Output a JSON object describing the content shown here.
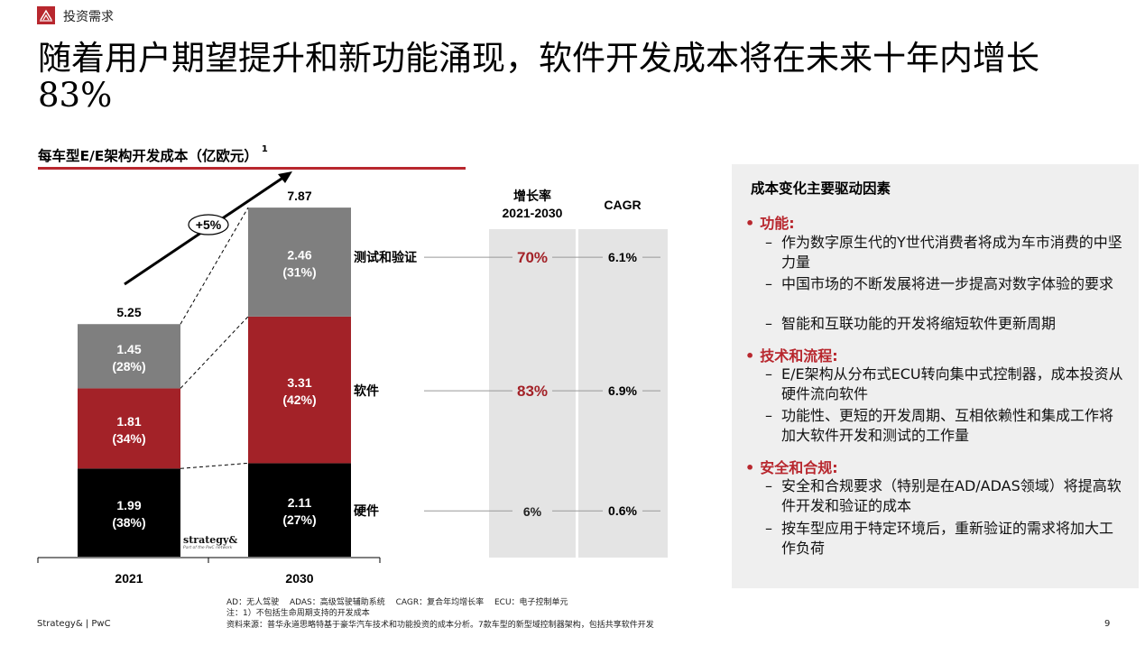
{
  "header": {
    "section_label": "投资需求",
    "logo_icon": "pwc-mark-icon",
    "brand_color": "#b8272e"
  },
  "headline": "随着用户期望提升和新功能涌现，软件开发成本将在未来十年内增长83%",
  "chart_data": {
    "type": "bar",
    "stacked": true,
    "title": "每车型E/E架构开发成本（亿欧元）",
    "title_footnote": "1",
    "categories": [
      "2021",
      "2030"
    ],
    "totals": [
      "5.25",
      "7.87"
    ],
    "growth_label": "+5%",
    "series": [
      {
        "name": "硬件",
        "color": "#000000",
        "values": [
          1.99,
          2.11
        ],
        "shares": [
          "(38%)",
          "(27%)"
        ],
        "growth": "6%",
        "cagr": "0.6%",
        "growth_color": "#222222"
      },
      {
        "name": "软件",
        "color": "#a32228",
        "values": [
          1.81,
          3.31
        ],
        "shares": [
          "(34%)",
          "(42%)"
        ],
        "growth": "83%",
        "cagr": "6.9%",
        "growth_color": "#a32228"
      },
      {
        "name": "测试和验证",
        "color": "#7f7f7f",
        "values": [
          1.45,
          2.46
        ],
        "shares": [
          "(28%)",
          "(31%)"
        ],
        "growth": "70%",
        "cagr": "6.1%",
        "growth_color": "#a32228"
      }
    ],
    "growth_header": [
      "增长率",
      "2021-2030"
    ],
    "cagr_header": "CAGR"
  },
  "drivers": {
    "title": "成本变化主要驱动因素",
    "groups": [
      {
        "title": "功能:",
        "items": [
          "作为数字原生代的Y世代消费者将成为车市消费的中坚力量",
          "中国市场的不断发展将进一步提高对数字体验的要求",
          "智能和互联功能的开发将缩短软件更新周期"
        ]
      },
      {
        "title": "技术和流程:",
        "items": [
          "E/E架构从分布式ECU转向集中式控制器，成本投资从硬件流向软件",
          "功能性、更短的开发周期、互相依赖性和集成工作将加大软件开发和测试的工作量"
        ]
      },
      {
        "title": "安全和合规:",
        "items": [
          "安全和合规要求（特别是在AD/ADAS领域）将提高软件开发和验证的成本",
          "按车型应用于特定环境后，重新验证的需求将加大工作负荷"
        ]
      }
    ]
  },
  "strategy_logo": {
    "main": "strategy&",
    "sub": "Part of the PwC network"
  },
  "notes": {
    "abbreviations": "AD：无人驾驶　 ADAS：高级驾驶辅助系统　 CAGR：复合年均增长率　 ECU：电子控制单元",
    "footnote": "注：1）不包括生命周期支持的开发成本",
    "source": "资料来源：普华永道思略特基于豪华汽车技术和功能投资的成本分析。7款车型的新型域控制器架构，包括共享软件开发"
  },
  "footer": {
    "brand": "Strategy& | PwC",
    "page": "9"
  }
}
